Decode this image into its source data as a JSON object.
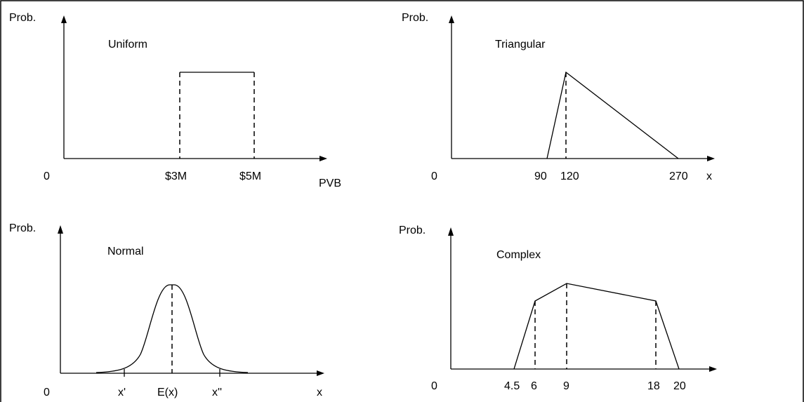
{
  "panels": {
    "uniform": {
      "ylabel": "Prob.",
      "origin": "0",
      "title": "Uniform",
      "xlabel": "PVB",
      "ticks": [
        "$3M",
        "$5M"
      ]
    },
    "triangular": {
      "ylabel": "Prob.",
      "origin": "0",
      "title": "Triangular",
      "xlabel": "x",
      "ticks": [
        "90",
        "120",
        "270"
      ]
    },
    "normal": {
      "ylabel": "Prob.",
      "origin": "0",
      "title": "Normal",
      "xlabel": "x",
      "ticks": [
        "x'",
        "E(x)",
        "x''"
      ]
    },
    "complex": {
      "ylabel": "Prob.",
      "origin": "0",
      "title": "Complex",
      "xlabel": "",
      "ticks": [
        "4.5",
        "6",
        "9",
        "18",
        "20"
      ]
    }
  },
  "icons": {
    "axis_arrow": "triangle-arrowhead"
  }
}
